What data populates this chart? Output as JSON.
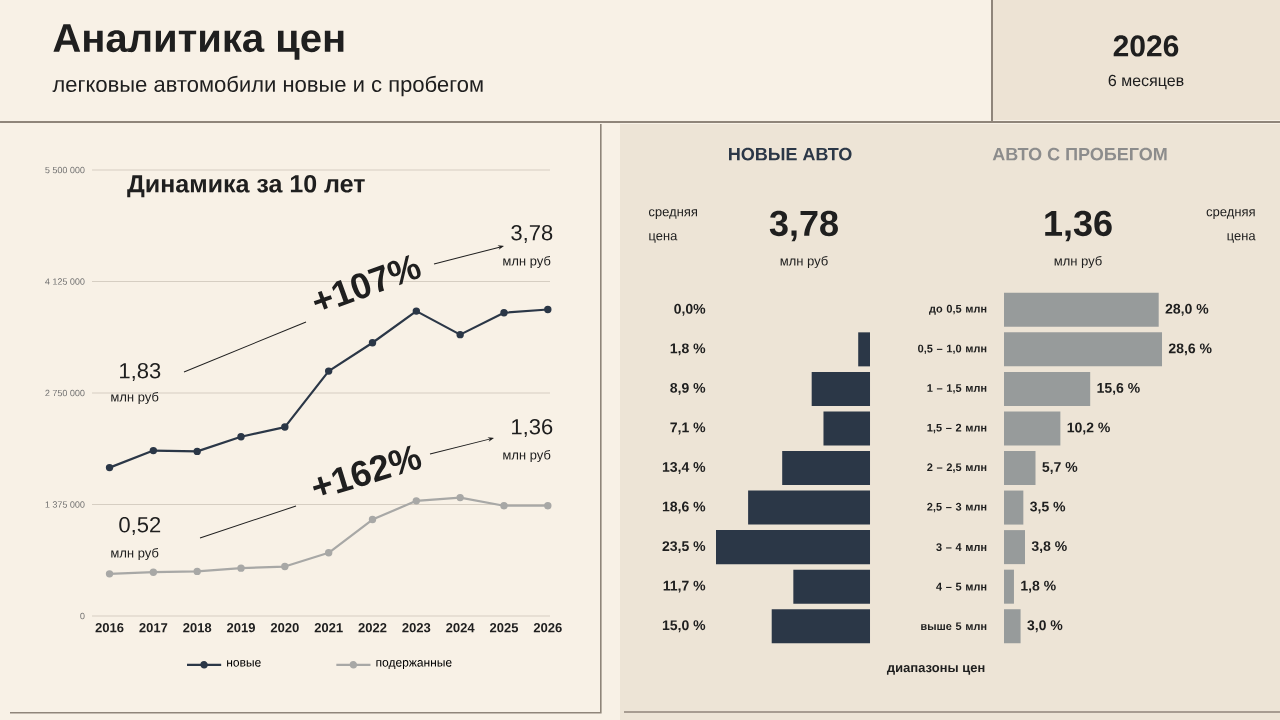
{
  "chart_data": [
    {
      "type": "other",
      "title": "Аналитика цен",
      "subtitle": "легковые автомобили новые и с пробегом",
      "annotations": [
        "2026",
        "6 месяцев"
      ]
    },
    {
      "type": "line",
      "title": "Динамика за 10 лет",
      "categories": [
        "2016",
        "2017",
        "2018",
        "2019",
        "2020",
        "2021",
        "2022",
        "2023",
        "2024",
        "2025",
        "2026"
      ],
      "series": [
        {
          "name": "новые",
          "color": "#2b3747",
          "values": [
            1830000,
            2040000,
            2030000,
            2210000,
            2330000,
            3020000,
            3370000,
            3760000,
            3470000,
            3740000,
            3780000
          ]
        },
        {
          "name": "подержанные",
          "color": "#a8a8a6",
          "values": [
            520000,
            540000,
            550000,
            590000,
            610000,
            780000,
            1190000,
            1420000,
            1460000,
            1360000,
            1360000
          ]
        }
      ],
      "ylim": [
        0,
        5500000
      ],
      "yticks": [
        0,
        {
          "value": 1375000,
          "label": "1 375 000"
        },
        {
          "value": 2750000,
          "label": "2 750 000"
        },
        {
          "value": 4125000,
          "label": "4 125 000"
        },
        {
          "value": 5500000,
          "label": "5 500 000"
        }
      ],
      "grid": "y",
      "legend": "bottom",
      "marker": "circle",
      "annotations": [
        "1,83",
        "млн руб",
        "+107%",
        "3,78",
        "млн руб",
        "0,52",
        "млн руб",
        "+162%",
        "1,36",
        "млн руб"
      ]
    },
    {
      "type": "bar",
      "orientation": "horizontal",
      "title": "НОВЫЕ АВТО",
      "xlabel": "диапазоны цен",
      "categories": [
        "до 0,5 млн",
        "0,5 – 1,0 млн",
        "1 – 1,5 млн",
        "1,5 – 2 млн",
        "2 – 2,5 млн",
        "2,5 – 3 млн",
        "3 – 4 млн",
        "4 – 5 млн",
        "выше 5 млн"
      ],
      "values": [
        0,
        1.8,
        8.9,
        7.1,
        13.4,
        18.6,
        23.5,
        11.7,
        15.0
      ],
      "color": "#2b3747",
      "value_labels": [
        "0,0%",
        "1,8 %",
        "8,9 %",
        "7,1 %",
        "13,4 %",
        "18,6 %",
        "23,5 %",
        "11,7 %",
        "15,0 %"
      ],
      "xlim": [
        23.5,
        0
      ],
      "annotations": [
        "средняя цена",
        "3,78",
        "млн руб"
      ]
    },
    {
      "type": "bar",
      "orientation": "horizontal",
      "title": "АВТО С ПРОБЕГОМ",
      "categories": [
        null,
        null,
        null,
        null,
        null,
        null,
        null,
        null,
        null
      ],
      "values": [
        28.0,
        28.6,
        15.6,
        10.2,
        5.7,
        3.5,
        3.8,
        1.8,
        3.0
      ],
      "color": "#979b9b",
      "value_labels": [
        "28,0 %",
        "28,6 %",
        "15,6 %",
        "10,2 %",
        "5,7 %",
        "3,5 %",
        "3,8 %",
        "1,8 %",
        "3,0 %"
      ],
      "xlim": [
        0,
        28.6
      ],
      "annotations": [
        "1,36",
        "млн руб",
        "средняя цена"
      ]
    }
  ]
}
